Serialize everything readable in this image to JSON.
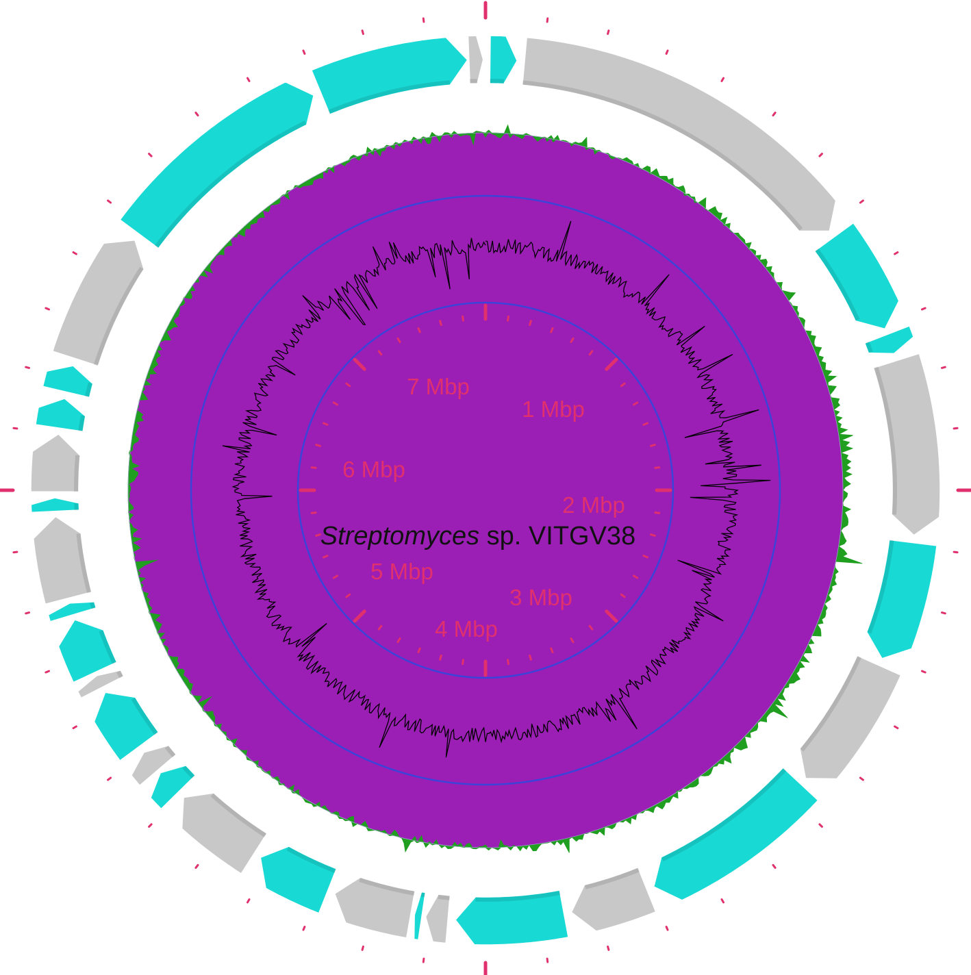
{
  "title": {
    "genus": "Streptomyces",
    "rest": " sp. VITGV38"
  },
  "scale_labels": [
    "1 Mbp",
    "2 Mbp",
    "3 Mbp",
    "4 Mbp",
    "5 Mbp",
    "6 Mbp",
    "7 Mbp"
  ],
  "colors": {
    "contig_cyan": "#19d9d4",
    "contig_gray": "#c8c8c8",
    "gc_skew_positive": "#1f9e1f",
    "gc_skew_negative": "#9b1fb5",
    "gc_content": "#000000",
    "backbone_circle": "#3b43d9",
    "tick_marks": "#e0306e"
  },
  "genome_size_mbp": 7.9,
  "contigs": [
    {
      "start_deg": 0.6,
      "end_deg": 4.2,
      "color": "contig_cyan"
    },
    {
      "start_deg": 5.2,
      "end_deg": 53.0,
      "color": "contig_gray"
    },
    {
      "start_deg": 54.0,
      "end_deg": 68.0,
      "color": "contig_cyan"
    },
    {
      "start_deg": 68.8,
      "end_deg": 71.5,
      "color": "contig_cyan"
    },
    {
      "start_deg": 72.5,
      "end_deg": 96.0,
      "color": "contig_gray"
    },
    {
      "start_deg": 97.0,
      "end_deg": 113.0,
      "color": "contig_cyan"
    },
    {
      "start_deg": 114.0,
      "end_deg": 132.0,
      "color": "contig_gray"
    },
    {
      "start_deg": 133.0,
      "end_deg": 157.0,
      "color": "contig_cyan"
    },
    {
      "start_deg": 158.0,
      "end_deg": 168.5,
      "color": "contig_gray"
    },
    {
      "start_deg": 169.5,
      "end_deg": 184.0,
      "color": "contig_cyan"
    },
    {
      "start_deg": 185.0,
      "end_deg": 188.0,
      "color": "contig_gray"
    },
    {
      "start_deg": 188.5,
      "end_deg": 189.5,
      "color": "contig_cyan"
    },
    {
      "start_deg": 190.0,
      "end_deg": 200.5,
      "color": "contig_gray"
    },
    {
      "start_deg": 201.5,
      "end_deg": 211.5,
      "color": "contig_cyan"
    },
    {
      "start_deg": 212.5,
      "end_deg": 224.5,
      "color": "contig_gray"
    },
    {
      "start_deg": 225.5,
      "end_deg": 229.0,
      "color": "contig_cyan"
    },
    {
      "start_deg": 229.5,
      "end_deg": 232.5,
      "color": "contig_gray"
    },
    {
      "start_deg": 233.5,
      "end_deg": 242.0,
      "color": "contig_cyan"
    },
    {
      "start_deg": 242.8,
      "end_deg": 244.5,
      "color": "contig_gray"
    },
    {
      "start_deg": 245.0,
      "end_deg": 252.5,
      "color": "contig_cyan"
    },
    {
      "start_deg": 253.2,
      "end_deg": 254.8,
      "color": "contig_cyan"
    },
    {
      "start_deg": 255.5,
      "end_deg": 266.5,
      "color": "contig_gray"
    },
    {
      "start_deg": 267.2,
      "end_deg": 269.0,
      "color": "contig_cyan"
    },
    {
      "start_deg": 269.8,
      "end_deg": 277.5,
      "color": "contig_gray"
    },
    {
      "start_deg": 278.3,
      "end_deg": 282.3,
      "color": "contig_cyan"
    },
    {
      "start_deg": 283.2,
      "end_deg": 286.8,
      "color": "contig_cyan"
    },
    {
      "start_deg": 287.8,
      "end_deg": 305.5,
      "color": "contig_gray"
    },
    {
      "start_deg": 306.5,
      "end_deg": 336.5,
      "color": "contig_cyan"
    },
    {
      "start_deg": 337.5,
      "end_deg": 357.6,
      "color": "contig_cyan"
    },
    {
      "start_deg": 357.8,
      "end_deg": 359.7,
      "color": "contig_gray"
    }
  ]
}
